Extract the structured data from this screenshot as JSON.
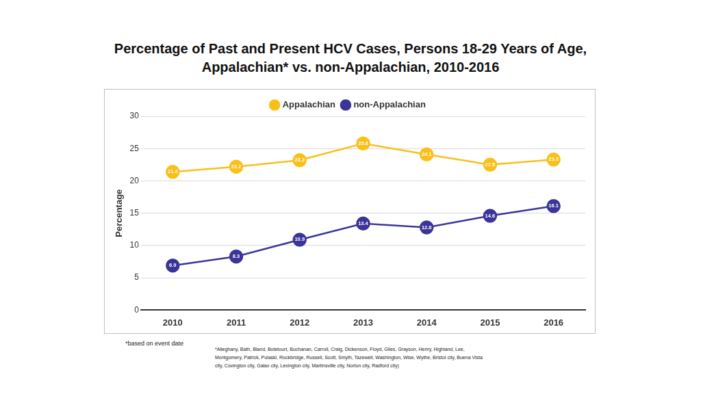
{
  "chart_data": {
    "type": "line",
    "title": [
      "Percentage of Past and Present HCV Cases, Persons 18-29 Years of Age,",
      "Appalachian* vs. non-Appalachian, 2010-2016"
    ],
    "y_label": "Percentage",
    "categories": [
      "2010",
      "2011",
      "2012",
      "2013",
      "2014",
      "2015",
      "2016"
    ],
    "series": [
      {
        "name": "Appalachian",
        "color": "#fbbf1a",
        "values": [
          21.4,
          22.2,
          23.2,
          25.8,
          24.1,
          22.5,
          23.3
        ]
      },
      {
        "name": "non-Appalachian",
        "color": "#3b3598",
        "values": [
          6.9,
          8.3,
          10.9,
          13.4,
          12.8,
          14.6,
          16.1
        ]
      }
    ],
    "ylim": [
      0,
      30
    ],
    "yticks": [
      0,
      5,
      10,
      15,
      20,
      25,
      30
    ],
    "grid": true,
    "legend": "top",
    "data_labels": true,
    "marker": "circle",
    "annotations": [
      "*based on event date",
      "*Alleghany, Bath, Bland, Botetourt, Buchanan, Carroll, Craig, Dickenson, Floyd, Giles, Grayson, Henry, Highland, Lee, Montgomery, Patrick, Pulaski, Rockbridge, Russell, Scott, Smyth, Tazewell, Washington, Wise, Wythe, Bristol city, Buena Vista city, Covington city, Galax city, Lexington city, Martinsville city, Norton city, Radford city)"
    ]
  }
}
